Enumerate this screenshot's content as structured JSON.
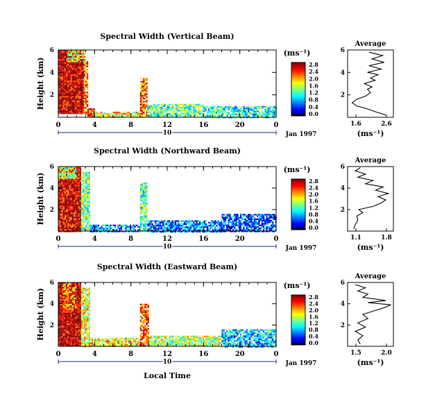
{
  "chart_data": [
    {
      "type": "heatmap",
      "title": "Spectral Width (Vertical Beam)",
      "ylabel": "Height (km)",
      "xlabel": "",
      "date_label": "Jan 1997",
      "day_label": "10",
      "x_ticks": [
        "0",
        "4",
        "8",
        "12",
        "16",
        "20",
        "0"
      ],
      "y_ticks": [
        "6",
        "4",
        "2"
      ],
      "xlim": [
        0,
        24
      ],
      "ylim": [
        0,
        6
      ],
      "colorbar": {
        "label": "(ms⁻¹)",
        "ticks": [
          "2.8",
          "2.4",
          "2.0",
          "1.6",
          "1.2",
          "0.8",
          "0.4",
          "0.0"
        ],
        "range": [
          0,
          3.0
        ]
      },
      "profile": {
        "title": "Average",
        "xlabel": "(ms⁻¹)",
        "x_ticks": [
          "1.6",
          "2.6"
        ],
        "xlim": [
          1.3,
          2.8
        ],
        "y_ticks": [
          "6",
          "4",
          "2"
        ],
        "points": [
          [
            2.55,
            0.2
          ],
          [
            2.2,
            0.5
          ],
          [
            1.9,
            0.8
          ],
          [
            1.6,
            1.0
          ],
          [
            1.45,
            1.3
          ],
          [
            1.6,
            1.6
          ],
          [
            1.9,
            1.9
          ],
          [
            2.05,
            2.2
          ],
          [
            1.95,
            2.5
          ],
          [
            2.1,
            2.7
          ],
          [
            1.85,
            3.0
          ],
          [
            2.2,
            3.3
          ],
          [
            2.05,
            3.5
          ],
          [
            2.3,
            3.8
          ],
          [
            1.95,
            4.0
          ],
          [
            2.4,
            4.3
          ],
          [
            2.0,
            4.6
          ],
          [
            2.5,
            4.9
          ],
          [
            2.1,
            5.2
          ],
          [
            2.45,
            5.5
          ],
          [
            2.0,
            5.8
          ]
        ]
      },
      "regions": [
        {
          "x": [
            0,
            2.8
          ],
          "y": [
            0.3,
            6.0
          ],
          "value": 2.9
        },
        {
          "x": [
            2.8,
            3.2
          ],
          "y": [
            0.3,
            5.0
          ],
          "value": 2.2
        },
        {
          "x": [
            1.0,
            3.0
          ],
          "y": [
            5.0,
            6.0
          ],
          "value": 1.7
        },
        {
          "x": [
            3.2,
            4.0
          ],
          "y": [
            0.0,
            0.8
          ],
          "value": 2.6
        },
        {
          "x": [
            4.0,
            9.0
          ],
          "y": [
            0.0,
            0.5
          ],
          "value": 1.9
        },
        {
          "x": [
            9.0,
            9.8
          ],
          "y": [
            0.0,
            3.5
          ],
          "value": 2.3
        },
        {
          "x": [
            9.8,
            16.0
          ],
          "y": [
            0.0,
            1.2
          ],
          "value": 1.4
        },
        {
          "x": [
            16.0,
            24.0
          ],
          "y": [
            0.0,
            1.0
          ],
          "value": 1.2
        }
      ]
    },
    {
      "type": "heatmap",
      "title": "Spectral Width (Northward Beam)",
      "ylabel": "Height (km)",
      "xlabel": "",
      "date_label": "Jan 1997",
      "day_label": "10",
      "x_ticks": [
        "0",
        "4",
        "8",
        "12",
        "16",
        "20",
        "0"
      ],
      "y_ticks": [
        "6",
        "4",
        "2"
      ],
      "xlim": [
        0,
        24
      ],
      "ylim": [
        0,
        6
      ],
      "colorbar": {
        "label": "(ms⁻¹)",
        "ticks": [
          "2.8",
          "2.4",
          "2.0",
          "1.6",
          "1.2",
          "0.8",
          "0.4",
          "0.0"
        ],
        "range": [
          0,
          3.0
        ]
      },
      "profile": {
        "title": "Average",
        "xlabel": "(ms⁻¹)",
        "x_ticks": [
          "1.1",
          "1.8"
        ],
        "xlim": [
          1.0,
          1.9
        ],
        "y_ticks": [
          "6",
          "4",
          "2"
        ],
        "points": [
          [
            1.12,
            0.2
          ],
          [
            1.15,
            0.6
          ],
          [
            1.2,
            1.0
          ],
          [
            1.18,
            1.4
          ],
          [
            1.3,
            1.7
          ],
          [
            1.22,
            2.0
          ],
          [
            1.5,
            2.3
          ],
          [
            1.65,
            2.6
          ],
          [
            1.75,
            2.9
          ],
          [
            1.6,
            3.2
          ],
          [
            1.8,
            3.5
          ],
          [
            1.55,
            3.8
          ],
          [
            1.7,
            4.1
          ],
          [
            1.35,
            4.4
          ],
          [
            1.5,
            4.7
          ],
          [
            1.2,
            5.0
          ],
          [
            1.35,
            5.3
          ],
          [
            1.15,
            5.6
          ],
          [
            1.25,
            5.9
          ]
        ]
      },
      "regions": [
        {
          "x": [
            0,
            2.5
          ],
          "y": [
            0.0,
            6.0
          ],
          "value": 2.8
        },
        {
          "x": [
            0,
            2.0
          ],
          "y": [
            5.0,
            6.0
          ],
          "value": 1.6
        },
        {
          "x": [
            2.5,
            3.5
          ],
          "y": [
            0.0,
            5.5
          ],
          "value": 1.5
        },
        {
          "x": [
            3.5,
            9.0
          ],
          "y": [
            0.0,
            0.6
          ],
          "value": 0.8
        },
        {
          "x": [
            9.0,
            9.8
          ],
          "y": [
            0.0,
            4.5
          ],
          "value": 1.4
        },
        {
          "x": [
            9.8,
            18.0
          ],
          "y": [
            0.0,
            1.0
          ],
          "value": 0.7
        },
        {
          "x": [
            18.0,
            24.0
          ],
          "y": [
            0.0,
            1.6
          ],
          "value": 0.5
        }
      ]
    },
    {
      "type": "heatmap",
      "title": "Spectral Width (Eastward Beam)",
      "ylabel": "Height (km)",
      "xlabel": "Local Time",
      "date_label": "Jan 1997",
      "day_label": "10",
      "x_ticks": [
        "0",
        "4",
        "8",
        "12",
        "16",
        "20",
        "0"
      ],
      "y_ticks": [
        "6",
        "4",
        "2"
      ],
      "xlim": [
        0,
        24
      ],
      "ylim": [
        0,
        6
      ],
      "colorbar": {
        "label": "(ms⁻¹)",
        "ticks": [
          "2.8",
          "2.4",
          "2.0",
          "1.6",
          "1.2",
          "0.8",
          "0.4",
          "0.0"
        ],
        "range": [
          0,
          3.0
        ]
      },
      "profile": {
        "title": "Average",
        "xlabel": "(ms⁻¹)",
        "x_ticks": [
          "1.5",
          "2.0"
        ],
        "xlim": [
          1.3,
          2.2
        ],
        "y_ticks": [
          "6",
          "4",
          "2"
        ],
        "points": [
          [
            1.55,
            0.2
          ],
          [
            1.5,
            0.6
          ],
          [
            1.6,
            1.0
          ],
          [
            1.45,
            1.4
          ],
          [
            1.65,
            1.8
          ],
          [
            1.5,
            2.2
          ],
          [
            1.7,
            2.6
          ],
          [
            1.6,
            3.0
          ],
          [
            1.8,
            3.3
          ],
          [
            2.0,
            3.6
          ],
          [
            2.15,
            3.9
          ],
          [
            1.7,
            4.1
          ],
          [
            2.05,
            4.3
          ],
          [
            1.6,
            4.6
          ],
          [
            1.7,
            4.9
          ],
          [
            1.5,
            5.2
          ],
          [
            1.65,
            5.5
          ],
          [
            1.45,
            5.8
          ]
        ]
      },
      "regions": [
        {
          "x": [
            0,
            2.5
          ],
          "y": [
            0.0,
            6.0
          ],
          "value": 2.9
        },
        {
          "x": [
            0.5,
            2.0
          ],
          "y": [
            3.5,
            6.0
          ],
          "value": 2.2
        },
        {
          "x": [
            2.5,
            3.5
          ],
          "y": [
            0.0,
            5.5
          ],
          "value": 1.8
        },
        {
          "x": [
            3.5,
            9.0
          ],
          "y": [
            0.0,
            0.8
          ],
          "value": 1.9
        },
        {
          "x": [
            9.0,
            10.0
          ],
          "y": [
            0.0,
            4.0
          ],
          "value": 2.4
        },
        {
          "x": [
            10.0,
            18.0
          ],
          "y": [
            0.0,
            1.0
          ],
          "value": 1.6
        },
        {
          "x": [
            18.0,
            24.0
          ],
          "y": [
            0.0,
            1.6
          ],
          "value": 1.0
        }
      ]
    }
  ]
}
